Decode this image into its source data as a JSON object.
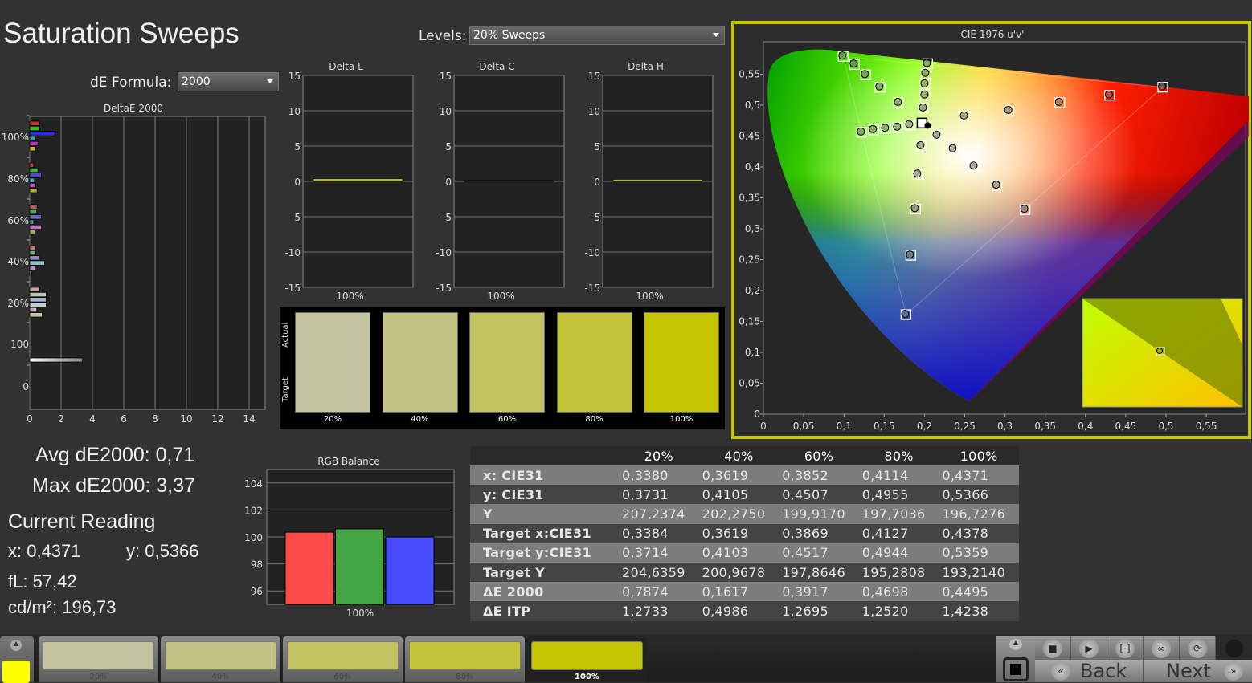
{
  "title": "Saturation Sweeps",
  "levels": {
    "label": "Levels:",
    "value": "20% Sweeps"
  },
  "de_formula": {
    "label": "dE Formula:",
    "value": "2000"
  },
  "deltae_chart": {
    "title": "DeltaE 2000",
    "xticks": [
      "0",
      "2",
      "4",
      "6",
      "8",
      "10",
      "12",
      "14"
    ],
    "xlim": [
      0,
      15
    ],
    "groups": [
      {
        "label": "100%",
        "values": [
          0.62,
          0.62,
          1.6,
          0.35,
          0.52,
          0.35
        ]
      },
      {
        "label": "80%",
        "values": [
          0.25,
          0.52,
          0.75,
          0.3,
          0.37,
          0.47
        ]
      },
      {
        "label": "60%",
        "values": [
          0.47,
          0.45,
          0.75,
          0.25,
          0.75,
          0.33
        ]
      },
      {
        "label": "40%",
        "values": [
          0.35,
          0.37,
          0.6,
          0.95,
          0.33,
          0.1
        ]
      },
      {
        "label": "20%",
        "values": [
          0.62,
          1.05,
          1.05,
          1.05,
          0.45,
          0.8
        ]
      },
      {
        "label": "100",
        "values": [
          3.37
        ]
      },
      {
        "label": "0",
        "values": []
      }
    ],
    "series_colors": [
      [
        "#c03030",
        "#30c030",
        "#3030d0",
        "#20b0b0",
        "#c030c0",
        "#c0c030"
      ],
      [
        "#b04848",
        "#48b048",
        "#5050c0",
        "#40a8a8",
        "#b050b0",
        "#b0b040"
      ],
      [
        "#b06060",
        "#60a860",
        "#6a6ab8",
        "#58a0a0",
        "#c070c0",
        "#a8a860"
      ],
      [
        "#c08080",
        "#80b080",
        "#8888c8",
        "#90c0c0",
        "#c090c0",
        "#c0c0a0"
      ],
      [
        "#d0a0a0",
        "#b0c8b0",
        "#b0b0d0",
        "#c0d0d0",
        "#c8a8c8",
        "#c8c8b0"
      ],
      [
        "#ffffff"
      ]
    ]
  },
  "delta_charts": [
    {
      "title": "Delta L",
      "value": 0.4,
      "xlabel": "100%"
    },
    {
      "title": "Delta C",
      "value": 0.05,
      "xlabel": "100%"
    },
    {
      "title": "Delta H",
      "value": 0.3,
      "xlabel": "100%"
    }
  ],
  "delta_yticks": [
    "15",
    "10",
    "5",
    "0",
    "-5",
    "-10",
    "-15"
  ],
  "swatches": {
    "actual_label": "Actual",
    "target_label": "Target",
    "items": [
      {
        "label": "20%",
        "color": "#c4c4a0"
      },
      {
        "label": "40%",
        "color": "#c3c386"
      },
      {
        "label": "60%",
        "color": "#c2c262"
      },
      {
        "label": "80%",
        "color": "#c4c43a"
      },
      {
        "label": "100%",
        "color": "#c4c400"
      }
    ]
  },
  "stats": {
    "avg": "Avg dE2000: 0,71",
    "max": "Max dE2000: 3,37",
    "current_reading": "Current Reading",
    "x": "x: 0,4371",
    "y": "y: 0,5366",
    "fl": "fL: 57,42",
    "cdm2": "cd/m²: 196,73"
  },
  "rgb_balance": {
    "title": "RGB Balance",
    "xlabel": "100%",
    "yticks": [
      "104",
      "102",
      "100",
      "98",
      "96"
    ],
    "ylim": [
      95,
      105
    ],
    "values": {
      "R": 100.35,
      "G": 100.6,
      "B": 100.0
    },
    "colors": {
      "R": "#ff4a4a",
      "G": "#45a545",
      "B": "#4a4aff"
    }
  },
  "table": {
    "columns": [
      "",
      "20%",
      "40%",
      "60%",
      "80%",
      "100%"
    ],
    "rows": [
      [
        "x: CIE31",
        "0,3380",
        "0,3619",
        "0,3852",
        "0,4114",
        "0,4371"
      ],
      [
        "y: CIE31",
        "0,3731",
        "0,4105",
        "0,4507",
        "0,4955",
        "0,5366"
      ],
      [
        "Y",
        "207,2374",
        "202,2750",
        "199,9170",
        "197,7036",
        "196,7276"
      ],
      [
        "Target x:CIE31",
        "0,3384",
        "0,3619",
        "0,3869",
        "0,4127",
        "0,4378"
      ],
      [
        "Target y:CIE31",
        "0,3714",
        "0,4103",
        "0,4517",
        "0,4944",
        "0,5359"
      ],
      [
        "Target Y",
        "204,6359",
        "200,9678",
        "197,8646",
        "195,2808",
        "193,2140"
      ],
      [
        "ΔE 2000",
        "0,7874",
        "0,1617",
        "0,3917",
        "0,4698",
        "0,4495"
      ],
      [
        "ΔE ITP",
        "1,2733",
        "0,4986",
        "1,2695",
        "1,2520",
        "1,4238"
      ]
    ]
  },
  "cie": {
    "title": "CIE 1976 u'v'",
    "xticks": [
      "0",
      "0,05",
      "0,1",
      "0,15",
      "0,2",
      "0,25",
      "0,3",
      "0,35",
      "0,4",
      "0,45",
      "0,5",
      "0,55"
    ],
    "yticks": [
      "0",
      "0,05",
      "0,1",
      "0,15",
      "0,2",
      "0,25",
      "0,3",
      "0,35",
      "0,4",
      "0,45",
      "0,5",
      "0,55"
    ],
    "xlim": [
      0,
      0.6
    ],
    "ylim": [
      0,
      0.6
    ],
    "border_color": "#c8c800",
    "targets": [
      [
        0.099,
        0.579
      ],
      [
        0.113,
        0.566
      ],
      [
        0.127,
        0.549
      ],
      [
        0.145,
        0.529
      ],
      [
        0.168,
        0.504
      ],
      [
        0.204,
        0.567
      ],
      [
        0.202,
        0.551
      ],
      [
        0.201,
        0.534
      ],
      [
        0.201,
        0.516
      ],
      [
        0.199,
        0.495
      ],
      [
        0.122,
        0.456
      ],
      [
        0.137,
        0.46
      ],
      [
        0.152,
        0.462
      ],
      [
        0.167,
        0.464
      ],
      [
        0.182,
        0.468
      ],
      [
        0.196,
        0.434
      ],
      [
        0.192,
        0.388
      ],
      [
        0.189,
        0.332
      ],
      [
        0.183,
        0.257
      ],
      [
        0.177,
        0.161
      ],
      [
        0.216,
        0.451
      ],
      [
        0.236,
        0.429
      ],
      [
        0.262,
        0.401
      ],
      [
        0.29,
        0.37
      ],
      [
        0.325,
        0.331
      ],
      [
        0.25,
        0.482
      ],
      [
        0.305,
        0.491
      ],
      [
        0.368,
        0.504
      ],
      [
        0.43,
        0.516
      ],
      [
        0.496,
        0.529
      ]
    ],
    "white_point": [
      0.197,
      0.471
    ],
    "current": [
      0.204,
      0.467
    ]
  },
  "bottom": {
    "current_color": "#ffff00",
    "tiles": [
      {
        "label": "20%",
        "color": "#c4c4a0"
      },
      {
        "label": "40%",
        "color": "#c3c386"
      },
      {
        "label": "60%",
        "color": "#c2c262"
      },
      {
        "label": "80%",
        "color": "#c4c43a"
      },
      {
        "label": "100%",
        "color": "#c4c400"
      }
    ],
    "back": "Back",
    "next": "Next"
  }
}
